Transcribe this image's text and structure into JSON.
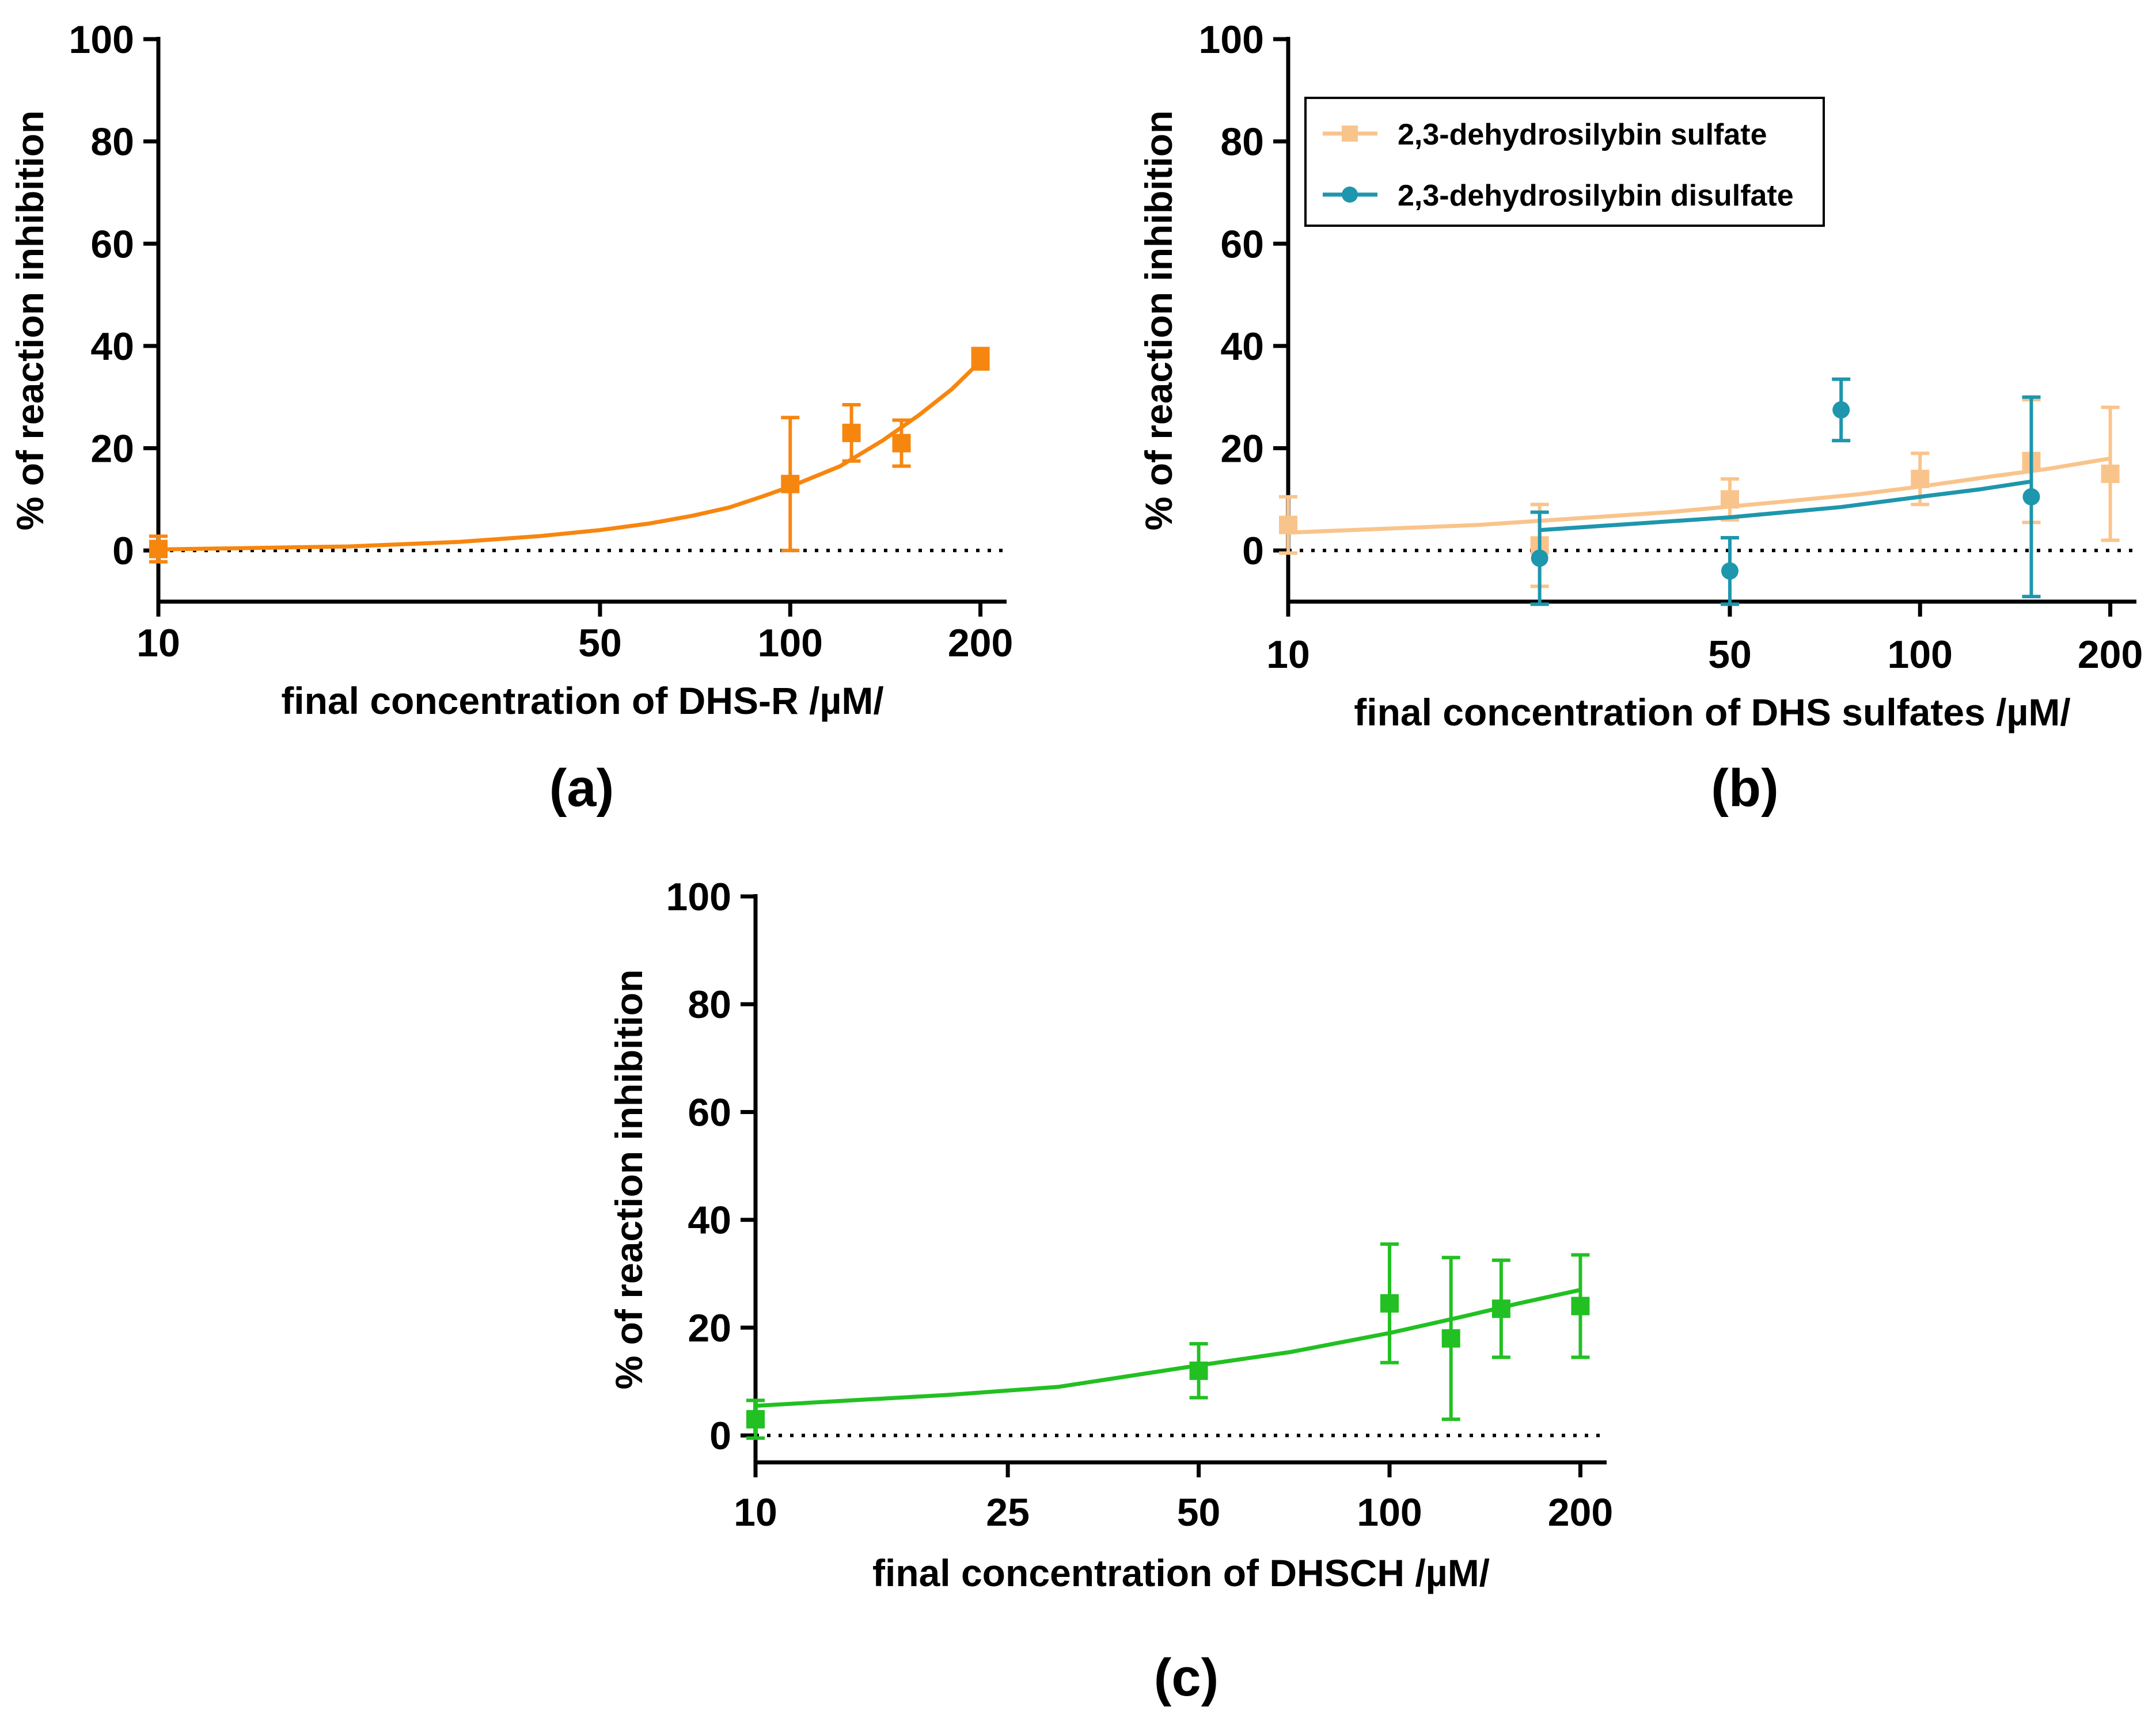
{
  "colors": {
    "dhs_r": "#F7860F",
    "monosulfate": "#F9C48C",
    "disulfate": "#1E96AD",
    "dhsch": "#22C022",
    "axis": "#000000"
  },
  "chart_data": [
    {
      "id": "a",
      "type": "scatter",
      "panel_label": "(a)",
      "xlabel": "final concentration of DHS-R /µM/",
      "ylabel": "% of reaction inhibition",
      "xscale": "log",
      "xlim": [
        10,
        220
      ],
      "ylim": [
        -10,
        100
      ],
      "xticks": [
        10,
        50,
        100,
        200
      ],
      "xtick_labels": [
        "10",
        "50",
        "100",
        "200"
      ],
      "yticks": [
        0,
        20,
        40,
        60,
        80,
        100
      ],
      "ytick_labels": [
        "0",
        "20",
        "40",
        "60",
        "80",
        "100"
      ],
      "zero_line": "dotted",
      "legend": null,
      "series": [
        {
          "name": "DHS-R",
          "color": "#F7860F",
          "marker": "square",
          "x": [
            10,
            100,
            125,
            150,
            200
          ],
          "y": [
            0.3,
            13,
            23,
            21,
            37.5
          ],
          "err": [
            2.5,
            13,
            5.5,
            4.5,
            2
          ],
          "fit": {
            "x": [
              10,
              20,
              30,
              40,
              50,
              60,
              70,
              80,
              90,
              100,
              120,
              140,
              160,
              180,
              200
            ],
            "y": [
              0.2,
              0.8,
              1.7,
              2.8,
              4,
              5.3,
              6.8,
              8.4,
              10.5,
              12.5,
              16.5,
              21.5,
              26.5,
              31.5,
              37
            ]
          }
        }
      ]
    },
    {
      "id": "b",
      "type": "scatter",
      "panel_label": "(b)",
      "xlabel": "final concentration of DHS sulfates /µM/",
      "ylabel": "% of reaction inhibition",
      "xscale": "log",
      "xlim": [
        10,
        220
      ],
      "ylim": [
        -10,
        100
      ],
      "xticks": [
        10,
        50,
        100,
        200
      ],
      "xtick_labels": [
        "10",
        "50",
        "100",
        "200"
      ],
      "yticks": [
        0,
        20,
        40,
        60,
        80,
        100
      ],
      "ytick_labels": [
        "0",
        "20",
        "40",
        "60",
        "80",
        "100"
      ],
      "zero_line": "dotted",
      "legend": "top-left",
      "series": [
        {
          "name": "2,3-dehydrosilybin sulfate",
          "color": "#F9C48C",
          "marker": "square",
          "x": [
            10,
            25,
            50,
            100,
            150,
            200
          ],
          "y": [
            5,
            1,
            10,
            14,
            17.5,
            15
          ],
          "err": [
            5.5,
            8,
            4,
            5,
            12,
            13
          ],
          "fit": {
            "x": [
              10,
              20,
              40,
              60,
              80,
              100,
              130,
              160,
              200
            ],
            "y": [
              3.5,
              5,
              7.5,
              9.5,
              11,
              12.5,
              14.5,
              16,
              18
            ]
          }
        },
        {
          "name": "2,3-dehydrosilybin disulfate",
          "color": "#1E96AD",
          "marker": "circle",
          "x": [
            25,
            50,
            75,
            150
          ],
          "y": [
            -1.5,
            -4,
            27.5,
            10.5
          ],
          "err": [
            9,
            6.5,
            6,
            19.5
          ],
          "fit": {
            "x": [
              25,
              50,
              75,
              100,
              125,
              150
            ],
            "y": [
              4,
              6.5,
              8.5,
              10.5,
              12,
              13.5
            ]
          }
        }
      ]
    },
    {
      "id": "c",
      "type": "scatter",
      "panel_label": "(c)",
      "xlabel": "final concentration of DHSCH /µM/",
      "ylabel": "% of reaction inhibition",
      "xscale": "log",
      "xlim": [
        10,
        220
      ],
      "ylim": [
        -5,
        100
      ],
      "xticks": [
        10,
        25,
        50,
        100,
        200
      ],
      "xtick_labels": [
        "10",
        "25",
        "50",
        "100",
        "200"
      ],
      "yticks": [
        0,
        20,
        40,
        60,
        80,
        100
      ],
      "ytick_labels": [
        "0",
        "20",
        "40",
        "60",
        "80",
        "100"
      ],
      "zero_line": "dotted",
      "legend": null,
      "series": [
        {
          "name": "DHSCH",
          "color": "#22C022",
          "marker": "square",
          "x": [
            10,
            50,
            100,
            125,
            150,
            200
          ],
          "y": [
            3,
            12,
            24.5,
            18,
            23.5,
            24
          ],
          "err": [
            3.5,
            5,
            11,
            15,
            9,
            9.5
          ],
          "fit": {
            "x": [
              10,
              20,
              30,
              50,
              70,
              100,
              130,
              160,
              200
            ],
            "y": [
              5.5,
              7.5,
              9,
              13,
              15.5,
              19,
              22,
              24.5,
              27
            ]
          }
        }
      ]
    }
  ]
}
